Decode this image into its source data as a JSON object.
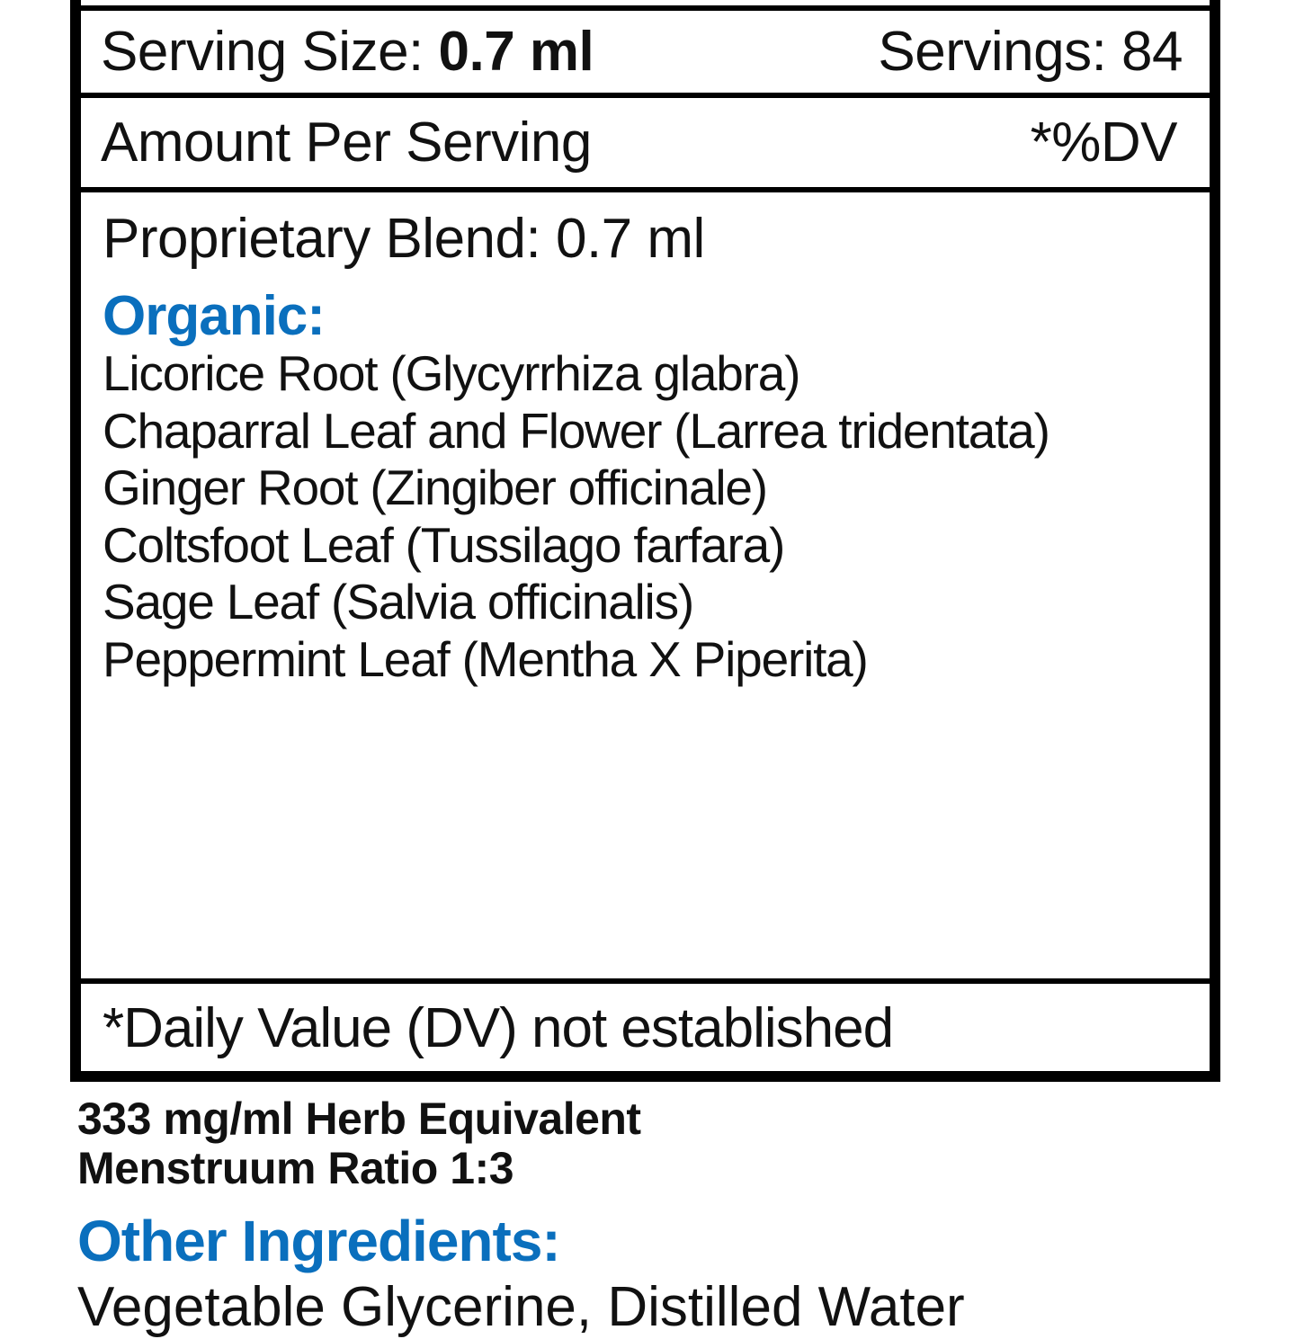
{
  "label": {
    "serving_size_label": "Serving Size:",
    "serving_size_value": "0.7 ml",
    "servings": "Servings: 84",
    "amount_per_serving": "Amount Per Serving",
    "dv_header": "*%DV",
    "blend": "Proprietary Blend: 0.7 ml",
    "organic_heading": "Organic:",
    "ingredients": [
      "Licorice Root (Glycyrrhiza glabra)",
      "Chaparral Leaf and Flower (Larrea tridentata)",
      "Ginger Root (Zingiber officinale)",
      "Coltsfoot Leaf (Tussilago farfara)",
      "Sage Leaf (Salvia officinalis)",
      "Peppermint Leaf (Mentha X Piperita)"
    ],
    "footnote": "*Daily Value (DV) not established"
  },
  "herb_equivalent": "333 mg/ml Herb Equivalent",
  "menstruum_ratio": "Menstruum Ratio 1:3",
  "other_ingredients_heading": "Other Ingredients:",
  "other_ingredients": "Vegetable Glycerine, Distilled Water",
  "colors": {
    "accent_blue": "#0a6fbd",
    "border": "#000000"
  }
}
